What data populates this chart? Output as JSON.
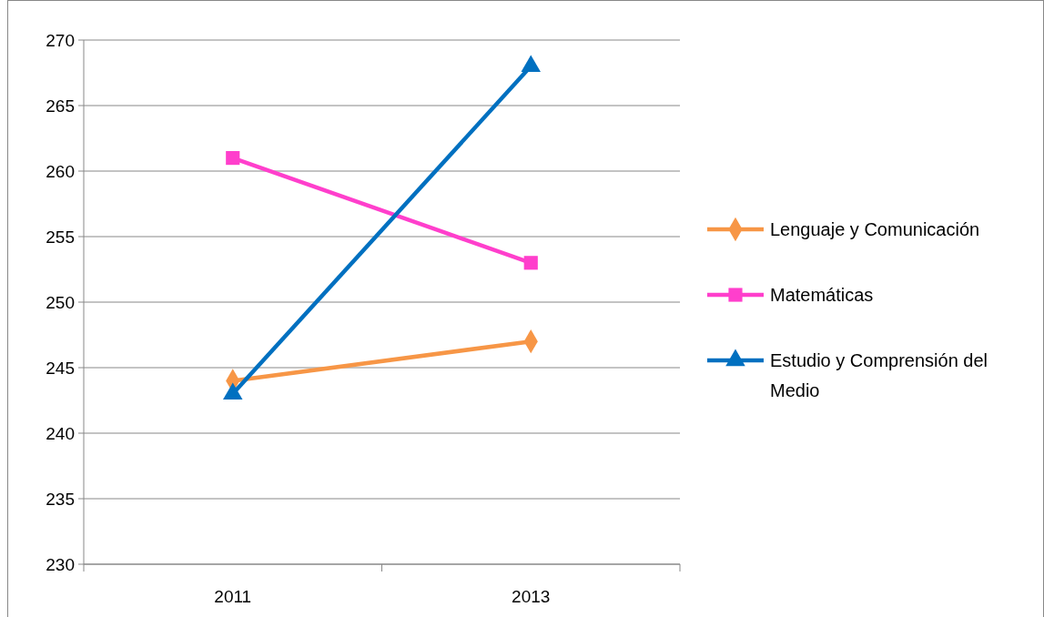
{
  "chart_data": {
    "type": "line",
    "categories": [
      "2011",
      "2013"
    ],
    "series": [
      {
        "name": "Lenguaje y Comunicación",
        "color": "#f79646",
        "values": [
          244,
          247
        ],
        "marker": "diamond"
      },
      {
        "name": "Matemáticas",
        "color": "#ff3fcc",
        "values": [
          261,
          253
        ],
        "marker": "square"
      },
      {
        "name": "Estudio y Comprensión del Medio",
        "color": "#0070c0",
        "values": [
          243,
          268
        ],
        "marker": "triangle"
      }
    ],
    "ylim": [
      230,
      270
    ],
    "yticks": [
      230,
      235,
      240,
      245,
      250,
      255,
      260,
      265,
      270
    ],
    "grid": "y",
    "legend": "right"
  }
}
